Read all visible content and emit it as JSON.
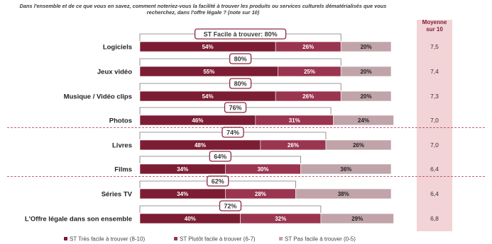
{
  "question": "Dans l'ensemble et de ce que vous en savez, comment noteriez-vous la facilité à trouver les produits ou services culturels dématérialisés que vous recherchez, dans l'offre légale ? (note sur 10)",
  "colors": {
    "series1": "#7c1d34",
    "series2": "#9a3550",
    "series3": "#c0a4aa",
    "bracket": "#8a2a42",
    "average_col": "#f2d3d6",
    "separator": "#b0314a"
  },
  "chart_data": {
    "type": "bar",
    "stacked": true,
    "orientation": "horizontal",
    "categories": [
      "Logiciels",
      "Jeux vidéo",
      "Musique / Vidéo clips",
      "Photos",
      "Livres",
      "Films",
      "Séries TV",
      "L'Offre légale dans son ensemble"
    ],
    "series": [
      {
        "name": "ST Très facile à trouver (8-10)",
        "values": [
          54,
          55,
          54,
          46,
          48,
          34,
          34,
          40
        ]
      },
      {
        "name": "ST Plutôt facile à trouver (6-7)",
        "values": [
          26,
          25,
          26,
          31,
          26,
          30,
          28,
          32
        ]
      },
      {
        "name": "ST Pas facile à trouver (0-5)",
        "values": [
          20,
          20,
          20,
          24,
          26,
          36,
          38,
          29
        ]
      }
    ],
    "data_labels": [
      [
        "54%",
        "26%",
        "20%"
      ],
      [
        "55%",
        "25%",
        "20%"
      ],
      [
        "54%",
        "26%",
        "20%"
      ],
      [
        "46%",
        "31%",
        "24%"
      ],
      [
        "48%",
        "26%",
        "26%"
      ],
      [
        "34%",
        "30%",
        "36%"
      ],
      [
        "34%",
        "28%",
        "38%"
      ],
      [
        "40%",
        "32%",
        "29%"
      ]
    ],
    "easy_totals": [
      80,
      80,
      80,
      76,
      74,
      64,
      62,
      72
    ],
    "easy_total_labels": [
      "ST Facile à trouver: 80%",
      "80%",
      "80%",
      "76%",
      "74%",
      "64%",
      "62%",
      "72%"
    ],
    "average_header": [
      "Moyenne",
      "sur 10"
    ],
    "averages": [
      "7,5",
      "7,4",
      "7,3",
      "7,0",
      "7,0",
      "6,4",
      "6,4",
      "6,8"
    ],
    "separators_after": [
      4,
      6
    ],
    "legend_position": "bottom"
  }
}
